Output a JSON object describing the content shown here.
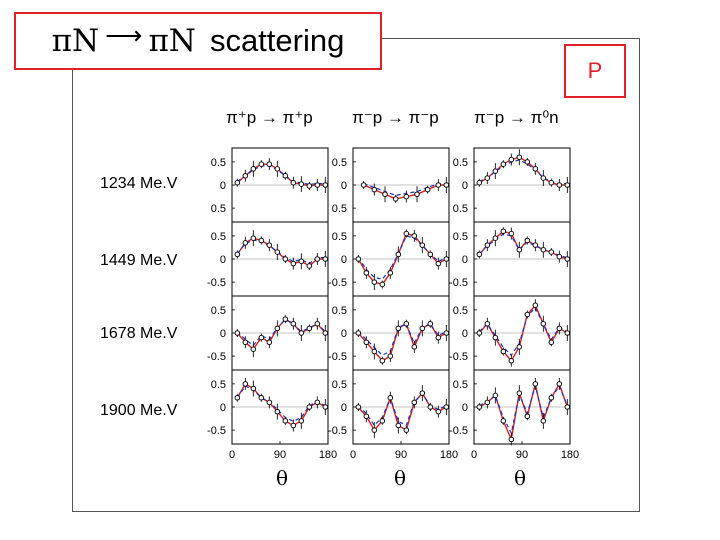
{
  "title": {
    "left": "πN",
    "arrow": "⟶",
    "right": "πN",
    "word": "scattering"
  },
  "badge": "P",
  "columns": [
    "π⁺p → π⁺p",
    "π⁻p → π⁻p",
    "π⁻p → π⁰n"
  ],
  "rows": [
    "1234 Me.V",
    "1449 Me.V",
    "1678 Me.V",
    "1900 Me.V"
  ],
  "xaxis": {
    "label": "θ",
    "ticks": [
      "0",
      "90",
      "180"
    ]
  },
  "colors": {
    "accent": "#e0202a",
    "model_solid": "#d42020",
    "model_dashed": "#2030c0",
    "data": "#111111"
  },
  "chart_data": {
    "type": "scatter",
    "title": "πN → πN scattering",
    "xlabel": "θ",
    "ylabel": "",
    "xlim": [
      0,
      180
    ],
    "panels": [
      {
        "row": "1234 Me.V",
        "column": "π⁺p → π⁺p",
        "ylim": [
          -0.8,
          0.8
        ],
        "yticks": [
          "0.5",
          "0",
          "0.5"
        ],
        "x": [
          10,
          25,
          40,
          55,
          70,
          85,
          100,
          115,
          130,
          145,
          160,
          175
        ],
        "y": [
          0.05,
          0.2,
          0.35,
          0.45,
          0.45,
          0.35,
          0.2,
          0.05,
          0.02,
          -0.02,
          0.0,
          0.0
        ]
      },
      {
        "row": "1234 Me.V",
        "column": "π⁻p → π⁻p",
        "ylim": [
          -0.8,
          0.8
        ],
        "yticks": [
          "0.5",
          "0",
          "0.5"
        ],
        "x": [
          20,
          40,
          60,
          80,
          100,
          120,
          140,
          160,
          175
        ],
        "y": [
          0.0,
          -0.1,
          -0.2,
          -0.3,
          -0.25,
          -0.2,
          -0.1,
          0.0,
          0.0
        ]
      },
      {
        "row": "1234 Me.V",
        "column": "π⁻p → π⁰n",
        "ylim": [
          -0.8,
          0.8
        ],
        "yticks": [
          "0.5",
          "0",
          "0.5"
        ],
        "x": [
          10,
          25,
          40,
          55,
          70,
          85,
          100,
          115,
          130,
          145,
          160,
          175
        ],
        "y": [
          0.05,
          0.15,
          0.3,
          0.45,
          0.55,
          0.6,
          0.5,
          0.35,
          0.15,
          0.05,
          0.0,
          0.0
        ]
      },
      {
        "row": "1449 Me.V",
        "column": "π⁺p → π⁺p",
        "ylim": [
          -0.8,
          0.8
        ],
        "yticks": [
          "0.5",
          "0",
          "-0.5"
        ],
        "x": [
          10,
          25,
          40,
          55,
          70,
          85,
          100,
          115,
          130,
          145,
          160,
          175
        ],
        "y": [
          0.1,
          0.35,
          0.45,
          0.4,
          0.3,
          0.15,
          0.0,
          -0.1,
          -0.05,
          -0.15,
          0.0,
          0.0
        ]
      },
      {
        "row": "1449 Me.V",
        "column": "π⁻p → π⁻p",
        "ylim": [
          -0.8,
          0.8
        ],
        "yticks": [
          "0.5",
          "0",
          "-0.5"
        ],
        "x": [
          10,
          25,
          40,
          55,
          70,
          85,
          100,
          115,
          130,
          145,
          160,
          175
        ],
        "y": [
          0.0,
          -0.3,
          -0.5,
          -0.55,
          -0.3,
          0.1,
          0.55,
          0.5,
          0.3,
          0.1,
          -0.1,
          0.0
        ]
      },
      {
        "row": "1449 Me.V",
        "column": "π⁻p → π⁰n",
        "ylim": [
          -0.8,
          0.8
        ],
        "yticks": [
          "0.5",
          "0",
          "-0.5"
        ],
        "x": [
          10,
          25,
          40,
          55,
          70,
          85,
          100,
          115,
          130,
          145,
          160,
          175
        ],
        "y": [
          0.1,
          0.3,
          0.45,
          0.6,
          0.55,
          0.2,
          0.4,
          0.3,
          0.2,
          0.15,
          0.05,
          0.0
        ]
      },
      {
        "row": "1678 Me.V",
        "column": "π⁺p → π⁺p",
        "ylim": [
          -0.8,
          0.8
        ],
        "yticks": [
          "0.5",
          "0",
          "-0.5"
        ],
        "x": [
          10,
          25,
          40,
          55,
          70,
          85,
          100,
          115,
          130,
          145,
          160,
          175
        ],
        "y": [
          0.0,
          -0.2,
          -0.35,
          -0.1,
          -0.2,
          0.1,
          0.3,
          0.2,
          0.0,
          0.1,
          0.2,
          0.0
        ]
      },
      {
        "row": "1678 Me.V",
        "column": "π⁻p → π⁻p",
        "ylim": [
          -0.8,
          0.8
        ],
        "yticks": [
          "0.5",
          "0",
          "-0.5"
        ],
        "x": [
          10,
          25,
          40,
          55,
          70,
          85,
          100,
          115,
          130,
          145,
          160,
          175
        ],
        "y": [
          0.0,
          -0.2,
          -0.4,
          -0.6,
          -0.5,
          0.1,
          0.2,
          -0.3,
          0.1,
          0.2,
          -0.1,
          0.0
        ]
      },
      {
        "row": "1678 Me.V",
        "column": "π⁻p → π⁰n",
        "ylim": [
          -0.8,
          0.8
        ],
        "yticks": [
          "0.5",
          "0",
          "-0.5"
        ],
        "x": [
          10,
          25,
          40,
          55,
          70,
          85,
          100,
          115,
          130,
          145,
          160,
          175
        ],
        "y": [
          0.0,
          0.2,
          -0.1,
          -0.4,
          -0.6,
          -0.3,
          0.4,
          0.6,
          0.2,
          -0.2,
          0.1,
          0.0
        ]
      },
      {
        "row": "1900 Me.V",
        "column": "π⁺p → π⁺p",
        "ylim": [
          -0.8,
          0.8
        ],
        "yticks": [
          "0.5",
          "0",
          "-0.5"
        ],
        "x": [
          10,
          25,
          40,
          55,
          70,
          85,
          100,
          115,
          130,
          145,
          160,
          175
        ],
        "y": [
          0.2,
          0.5,
          0.4,
          0.2,
          0.1,
          -0.1,
          -0.3,
          -0.4,
          -0.3,
          0.0,
          0.1,
          0.0
        ]
      },
      {
        "row": "1900 Me.V",
        "column": "π⁻p → π⁻p",
        "ylim": [
          -0.8,
          0.8
        ],
        "yticks": [
          "0.5",
          "0",
          "-0.5"
        ],
        "x": [
          10,
          25,
          40,
          55,
          70,
          85,
          100,
          115,
          130,
          145,
          160,
          175
        ],
        "y": [
          0.0,
          -0.2,
          -0.5,
          -0.3,
          0.2,
          -0.4,
          -0.5,
          0.1,
          0.3,
          0.0,
          -0.1,
          0.0
        ]
      },
      {
        "row": "1900 Me.V",
        "column": "π⁻p → π⁰n",
        "ylim": [
          -0.8,
          0.8
        ],
        "yticks": [
          "0.5",
          "0",
          "-0.5"
        ],
        "x": [
          10,
          25,
          40,
          55,
          70,
          85,
          100,
          115,
          130,
          145,
          160,
          175
        ],
        "y": [
          0.0,
          0.1,
          0.25,
          -0.3,
          -0.7,
          0.3,
          -0.2,
          0.5,
          -0.3,
          0.2,
          0.5,
          0.0
        ]
      }
    ]
  }
}
